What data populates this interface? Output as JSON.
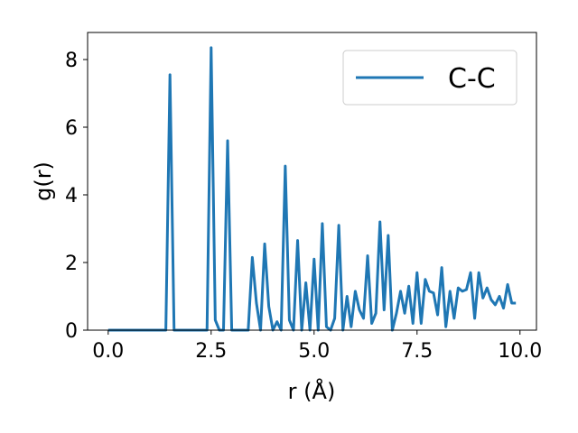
{
  "chart_data": {
    "type": "line",
    "xlabel": "r (Å)",
    "ylabel": "g(r)",
    "xlim": [
      -0.5,
      10.4
    ],
    "ylim": [
      0,
      8.8
    ],
    "xticks": [
      0.0,
      2.5,
      5.0,
      7.5,
      10.0
    ],
    "xtick_labels": [
      "0.0",
      "2.5",
      "5.0",
      "7.5",
      "10.0"
    ],
    "yticks": [
      0,
      2,
      4,
      6,
      8
    ],
    "ytick_labels": [
      "0",
      "2",
      "4",
      "6",
      "8"
    ],
    "grid": false,
    "legend_position": "top-right",
    "series": [
      {
        "name": "C-C",
        "color": "#1f77b4",
        "x": [
          0.0,
          0.1,
          0.2,
          0.3,
          0.4,
          0.5,
          0.6,
          0.7,
          0.8,
          0.9,
          1.0,
          1.1,
          1.2,
          1.3,
          1.4,
          1.5,
          1.6,
          1.7,
          1.8,
          1.9,
          2.0,
          2.1,
          2.2,
          2.3,
          2.4,
          2.5,
          2.6,
          2.7,
          2.8,
          2.9,
          3.0,
          3.1,
          3.2,
          3.3,
          3.4,
          3.5,
          3.6,
          3.7,
          3.8,
          3.9,
          4.0,
          4.1,
          4.2,
          4.3,
          4.4,
          4.5,
          4.6,
          4.7,
          4.8,
          4.9,
          5.0,
          5.1,
          5.2,
          5.3,
          5.4,
          5.5,
          5.6,
          5.7,
          5.8,
          5.9,
          6.0,
          6.1,
          6.2,
          6.3,
          6.4,
          6.5,
          6.6,
          6.7,
          6.8,
          6.9,
          7.0,
          7.1,
          7.2,
          7.3,
          7.4,
          7.5,
          7.6,
          7.7,
          7.8,
          7.9,
          8.0,
          8.1,
          8.2,
          8.3,
          8.4,
          8.5,
          8.6,
          8.7,
          8.8,
          8.9,
          9.0,
          9.1,
          9.2,
          9.3,
          9.4,
          9.5,
          9.6,
          9.7,
          9.8,
          9.9
        ],
        "y": [
          0,
          0,
          0,
          0,
          0,
          0,
          0,
          0,
          0,
          0,
          0,
          0,
          0,
          0,
          0,
          7.55,
          0,
          0,
          0,
          0,
          0,
          0,
          0,
          0,
          0,
          8.35,
          0.3,
          0,
          0,
          5.6,
          0,
          0,
          0,
          0,
          0,
          2.15,
          0.8,
          0,
          2.55,
          0.7,
          0,
          0.25,
          0,
          4.85,
          0.3,
          0,
          2.65,
          0,
          1.4,
          0,
          2.1,
          0,
          3.15,
          0.1,
          0,
          0.35,
          3.1,
          0,
          1.0,
          0.1,
          1.15,
          0.6,
          0.35,
          2.2,
          0.2,
          0.5,
          3.2,
          0.6,
          2.8,
          0,
          0.5,
          1.15,
          0.5,
          1.3,
          0.2,
          1.7,
          0.2,
          1.5,
          1.15,
          1.1,
          0.45,
          1.85,
          0.1,
          1.15,
          0.35,
          1.25,
          1.15,
          1.2,
          1.7,
          0.35,
          1.7,
          0.95,
          1.25,
          0.9,
          0.75,
          1.0,
          0.65,
          1.35,
          0.8,
          0.8
        ]
      }
    ]
  }
}
